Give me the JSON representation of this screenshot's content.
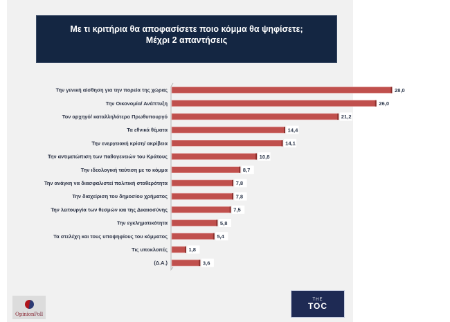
{
  "header": {
    "title_line1": "Με τι κριτήρια θα αποφασίσετε ποιο κόμμα θα ψηφίσετε;",
    "title_line2": "Μέχρι 2 απαντήσεις"
  },
  "logos": {
    "left": "OpinionPoll",
    "left_part1": "Opinion",
    "left_part2": "Poll",
    "right_small": "THE",
    "right_big": "TOC"
  },
  "colors": {
    "bar": "#c0504d",
    "bar_dark": "#8b2f2c",
    "header_bg": "#142642",
    "page_bg": "#f1f1f1"
  },
  "chart_data": {
    "type": "bar",
    "orientation": "horizontal",
    "title": "Με τι κριτήρια θα αποφασίσετε ποιο κόμμα θα ψηφίσετε; Μέχρι 2 απαντήσεις",
    "xlabel": "",
    "ylabel": "",
    "xlim": [
      0,
      28
    ],
    "grid": false,
    "legend": "none",
    "categories": [
      "Την γενική αίσθηση για την πορεία της χώρας",
      "Την Οικονομία/ Ανάπτυξη",
      "Τον αρχηγό/ καταλληλότερο Πρωθυπουργό",
      "Τα εθνικά θέματα",
      "Την ενεργειακή κρίση/ ακρίβεια",
      "Την αντιμετώπιση των παθογενειών του Κράτους",
      "Την ιδεολογική ταύτιση με το κόμμα",
      "Την ανάγκη να διασφαλιστεί πολιτική σταθερότητα",
      "Την διαχείριση του δημοσίου χρήματος",
      "Την λειτουργία των θεσμών και της Δικαιοσύνης",
      "Την εγκληματικότητα",
      "Τα στελέχη και τους υποψηφίους του κόμματος",
      "Τις υποκλοπές",
      "(Δ.Α.)"
    ],
    "values": [
      28.0,
      26.0,
      21.2,
      14.4,
      14.1,
      10.8,
      8.7,
      7.8,
      7.8,
      7.5,
      5.8,
      5.4,
      1.8,
      3.6
    ],
    "value_labels": [
      "28,0",
      "26,0",
      "21,2",
      "14,4",
      "14,1",
      "10,8",
      "8,7",
      "7,8",
      "7,8",
      "7,5",
      "5,8",
      "5,4",
      "1,8",
      "3,6"
    ]
  }
}
